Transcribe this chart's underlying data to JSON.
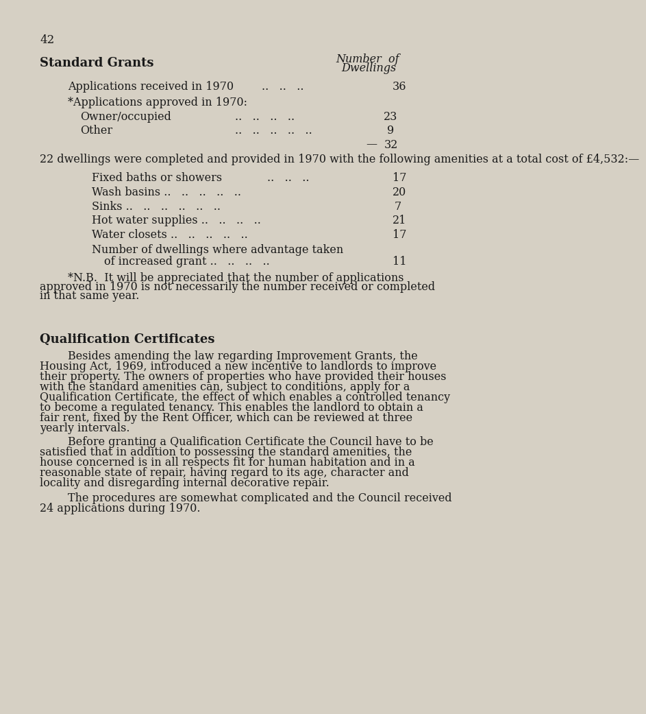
{
  "bg_color": "#d6d0c4",
  "text_color": "#1a1a1a",
  "page_number": "42",
  "section1_title": "Standard Grants",
  "section1_header_right_line1": "Number  of",
  "section1_header_right_line2": "Dwellings",
  "line1_label": "Applications received in 1970",
  "line1_dots": "..   ..   ..",
  "line1_value": "36",
  "line2_label": "*Applications approved in 1970:",
  "line3_label": "Owner/occupied",
  "line3_dots": "..   ..   ..   ..",
  "line3_value": "23",
  "line4_label": "Other",
  "line4_dots": "..   ..   ..   ..   ..",
  "line4_value": "9",
  "total_dash": "—",
  "total_value": "32",
  "para1": "22 dwellings were completed and provided in 1970 with the following amenities at a total cost of £4,532:—",
  "amenity1_label": "Fixed baths or showers",
  "amenity1_value": "17",
  "amenity2_label": "Wash basins ..",
  "amenity2_value": "20",
  "amenity3_label": "Sinks ..",
  "amenity3_value": "7",
  "amenity4_label": "Hot water supplies",
  "amenity4_value": "21",
  "amenity5_label": "Water closets ..",
  "amenity5_value": "17",
  "amenity6_label_line1": "Number of dwellings where advantage taken",
  "amenity6_label_line2": "of increased grant ..",
  "amenity6_value": "11",
  "nb_line1": "*N.B.  It will be appreciated that the number of applications",
  "nb_line2": "approved in 1970 is not necessarily the number received or completed",
  "nb_line3": "in that same year.",
  "section2_title": "Qualification Certificates",
  "para2_lines": [
    "Besides amending the law regarding Improvement Grants, the",
    "Housing Act, 1969, introduced a new incentive to landlords to improve",
    "their property. The owners of properties who have provided their houses",
    "with the standard amenities can, subject to conditions, apply for a",
    "Qualification Certificate, the effect of which enables a controlled tenancy",
    "to become a regulated tenancy. This enables the landlord to obtain a",
    "fair rent, fixed by the Rent Officer, which can be reviewed at three",
    "yearly intervals."
  ],
  "para3_lines": [
    "Before granting a Qualification Certificate the Council have to be",
    "satisfied that in addition to possessing the standard amenities, the",
    "house concerned is in all respects fit for human habitation and in a",
    "reasonable state of repair, having regard to its age, character and",
    "locality and disregarding internal decorative repair."
  ],
  "para4_lines": [
    "The procedures are somewhat complicated and the Council received",
    "24 applications during 1970."
  ]
}
